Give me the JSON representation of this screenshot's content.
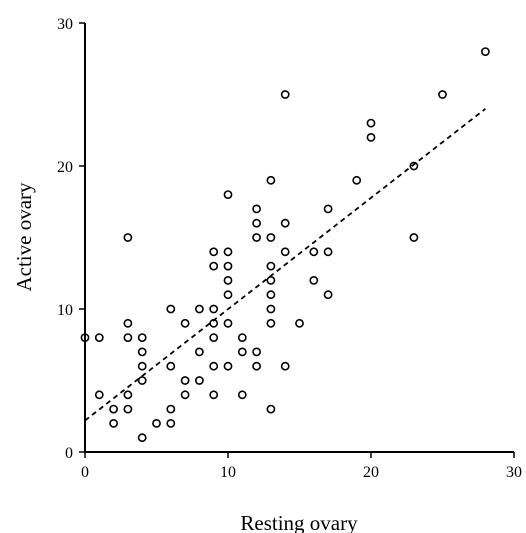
{
  "chart_data": {
    "type": "scatter",
    "title": "",
    "xlabel": "Resting ovary",
    "ylabel": "Active ovary",
    "xlim": [
      0,
      30
    ],
    "ylim": [
      0,
      30
    ],
    "xticks": [
      0,
      10,
      20,
      30
    ],
    "yticks": [
      0,
      10,
      20,
      30
    ],
    "grid": false,
    "marker": "open-circle",
    "trendline": {
      "style": "dashed",
      "x": [
        0,
        28
      ],
      "y": [
        2.2,
        24
      ]
    },
    "series": [
      {
        "points": [
          [
            0,
            8
          ],
          [
            1,
            8
          ],
          [
            1,
            4
          ],
          [
            2,
            3
          ],
          [
            2,
            2
          ],
          [
            3,
            15
          ],
          [
            3,
            9
          ],
          [
            3,
            8
          ],
          [
            3,
            4
          ],
          [
            3,
            3
          ],
          [
            4,
            8
          ],
          [
            4,
            7
          ],
          [
            4,
            6
          ],
          [
            4,
            5
          ],
          [
            4,
            1
          ],
          [
            5,
            2
          ],
          [
            6,
            10
          ],
          [
            6,
            6
          ],
          [
            6,
            3
          ],
          [
            6,
            2
          ],
          [
            7,
            9
          ],
          [
            7,
            5
          ],
          [
            7,
            4
          ],
          [
            8,
            10
          ],
          [
            8,
            7
          ],
          [
            8,
            5
          ],
          [
            9,
            14
          ],
          [
            9,
            13
          ],
          [
            9,
            10
          ],
          [
            9,
            9
          ],
          [
            9,
            8
          ],
          [
            9,
            6
          ],
          [
            9,
            4
          ],
          [
            10,
            18
          ],
          [
            10,
            14
          ],
          [
            10,
            13
          ],
          [
            10,
            12
          ],
          [
            10,
            11
          ],
          [
            10,
            9
          ],
          [
            10,
            6
          ],
          [
            11,
            8
          ],
          [
            11,
            7
          ],
          [
            11,
            4
          ],
          [
            12,
            17
          ],
          [
            12,
            16
          ],
          [
            12,
            15
          ],
          [
            12,
            7
          ],
          [
            12,
            6
          ],
          [
            13,
            19
          ],
          [
            13,
            15
          ],
          [
            13,
            13
          ],
          [
            13,
            12
          ],
          [
            13,
            11
          ],
          [
            13,
            10
          ],
          [
            13,
            9
          ],
          [
            13,
            3
          ],
          [
            14,
            25
          ],
          [
            14,
            16
          ],
          [
            14,
            14
          ],
          [
            14,
            6
          ],
          [
            15,
            9
          ],
          [
            16,
            14
          ],
          [
            16,
            12
          ],
          [
            17,
            17
          ],
          [
            17,
            14
          ],
          [
            17,
            11
          ],
          [
            19,
            19
          ],
          [
            20,
            23
          ],
          [
            20,
            22
          ],
          [
            23,
            20
          ],
          [
            23,
            15
          ],
          [
            25,
            25
          ],
          [
            28,
            28
          ]
        ]
      }
    ]
  }
}
